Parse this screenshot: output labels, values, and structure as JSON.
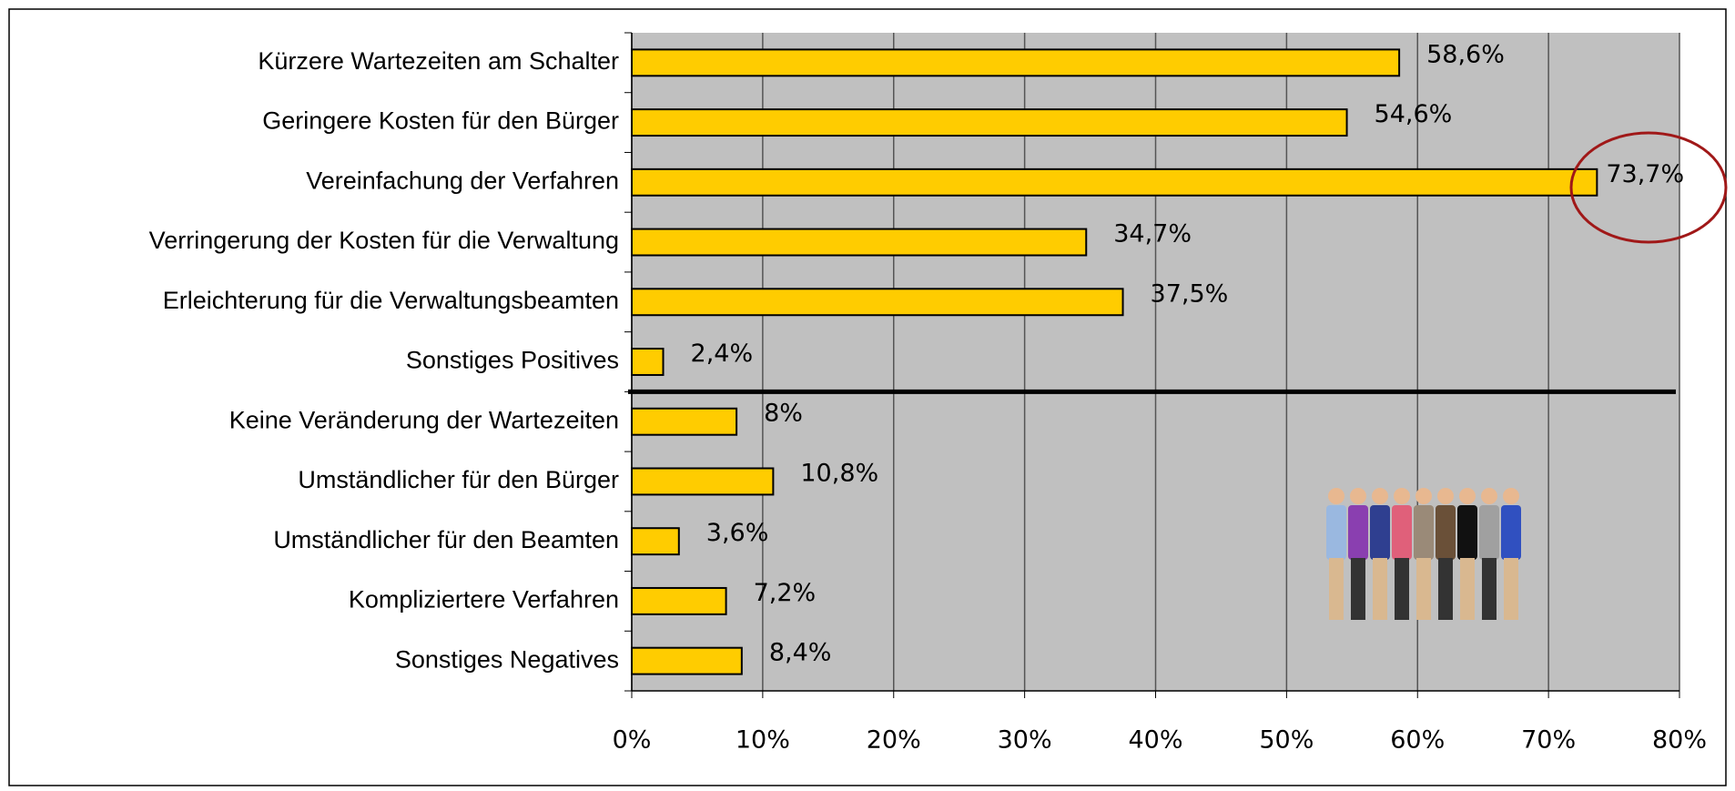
{
  "chart_data": {
    "type": "bar",
    "orientation": "horizontal",
    "categories": [
      "Kürzere Wartezeiten am Schalter",
      "Geringere Kosten für den Bürger",
      "Vereinfachung der Verfahren",
      "Verringerung der Kosten für die Verwaltung",
      "Erleichterung für die Verwaltungsbeamten",
      "Sonstiges Positives",
      "Keine Veränderung der Wartezeiten",
      "Umständlicher für den Bürger",
      "Umständlicher für den Beamten",
      "Kompliziertere Verfahren",
      "Sonstiges Negatives"
    ],
    "values": [
      58.6,
      54.6,
      73.7,
      34.7,
      37.5,
      2.4,
      8,
      10.8,
      3.6,
      7.2,
      8.4
    ],
    "value_labels": [
      "58,6%",
      "54,6%",
      "73,7%",
      "34,7%",
      "37,5%",
      "2,4%",
      "8%",
      "10,8%",
      "3,6%",
      "7,2%",
      "8,4%"
    ],
    "color": "#ffcc00",
    "xlim": [
      0,
      80
    ],
    "xticks": [
      {
        "value": 0,
        "label": "0%"
      },
      {
        "value": 10,
        "label": "10%"
      },
      {
        "value": 20,
        "label": "20%"
      },
      {
        "value": 30,
        "label": "30%"
      },
      {
        "value": 40,
        "label": "40%"
      },
      {
        "value": 50,
        "label": "50%"
      },
      {
        "value": 60,
        "label": "60%"
      },
      {
        "value": 70,
        "label": "70%"
      },
      {
        "value": 80,
        "label": "80%"
      }
    ],
    "grid": true
  }
}
